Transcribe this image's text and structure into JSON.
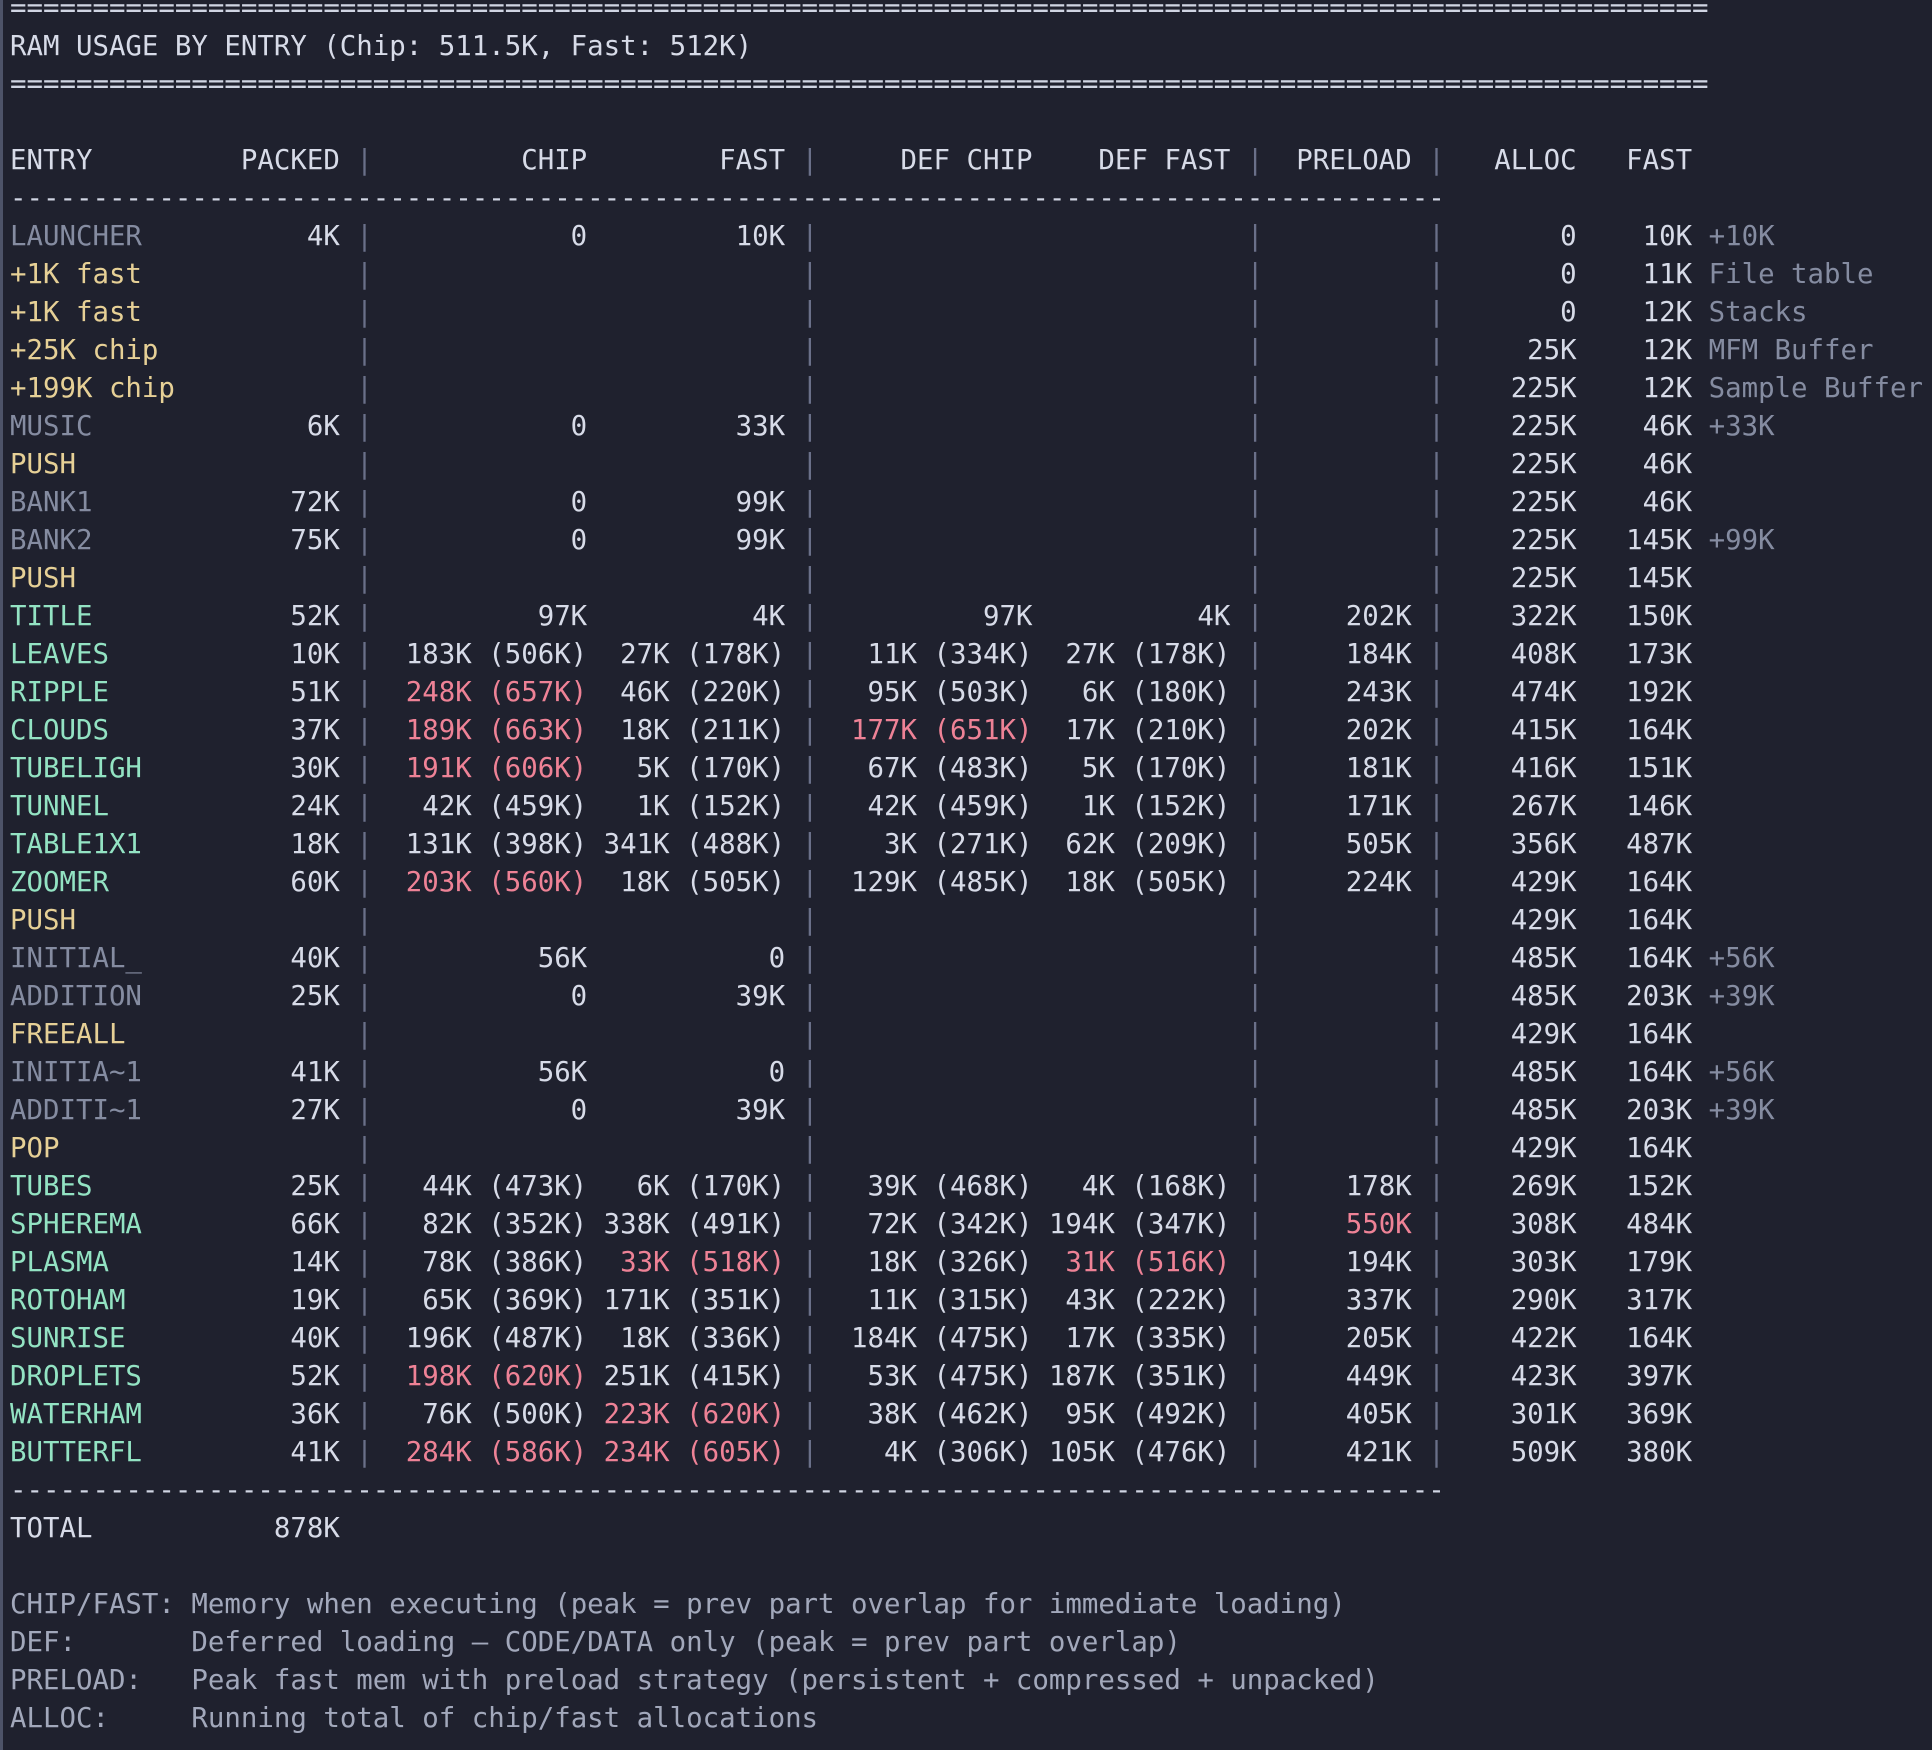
{
  "colors": {
    "background": "#1f212e",
    "border_left": "#4d5368",
    "text_bright": "#d7dbe8",
    "text_dim": "#858ca1",
    "marker_yellow": "#e6d096",
    "part_teal": "#93e3c3",
    "alert_pink": "#ee8296",
    "pipe": "#6a7089",
    "legend": "#a2a8bb",
    "separator": "#d0d5e3"
  },
  "terminal": {
    "title": "RAM USAGE BY ENTRY (Chip: 511.5K, Fast: 512K)",
    "header": {
      "entry": "ENTRY",
      "packed": "PACKED",
      "chip": "CHIP",
      "fast": "FAST",
      "def_chip": "DEF CHIP",
      "def_fast": "DEF FAST",
      "preload": "PRELOAD",
      "alloc": "ALLOC",
      "fast2": "FAST"
    },
    "rows": [
      {
        "entry": "LAUNCHER",
        "style": "dim",
        "packed": "4K",
        "chip": "0",
        "fast": "10K",
        "def_chip": "",
        "def_fast": "",
        "preload": "",
        "alloc": "0",
        "fast2": "10K",
        "note": "+10K",
        "hl": []
      },
      {
        "entry": "+1K fast",
        "style": "marker",
        "packed": "",
        "chip": "",
        "fast": "",
        "def_chip": "",
        "def_fast": "",
        "preload": "",
        "alloc": "0",
        "fast2": "11K",
        "note": "File table",
        "hl": []
      },
      {
        "entry": "+1K fast",
        "style": "marker",
        "packed": "",
        "chip": "",
        "fast": "",
        "def_chip": "",
        "def_fast": "",
        "preload": "",
        "alloc": "0",
        "fast2": "12K",
        "note": "Stacks",
        "hl": []
      },
      {
        "entry": "+25K chip",
        "style": "marker",
        "packed": "",
        "chip": "",
        "fast": "",
        "def_chip": "",
        "def_fast": "",
        "preload": "",
        "alloc": "25K",
        "fast2": "12K",
        "note": "MFM Buffer",
        "hl": []
      },
      {
        "entry": "+199K chip",
        "style": "marker",
        "packed": "",
        "chip": "",
        "fast": "",
        "def_chip": "",
        "def_fast": "",
        "preload": "",
        "alloc": "225K",
        "fast2": "12K",
        "note": "Sample Buffer",
        "hl": []
      },
      {
        "entry": "MUSIC",
        "style": "dim",
        "packed": "6K",
        "chip": "0",
        "fast": "33K",
        "def_chip": "",
        "def_fast": "",
        "preload": "",
        "alloc": "225K",
        "fast2": "46K",
        "note": "+33K",
        "hl": []
      },
      {
        "entry": "PUSH",
        "style": "marker",
        "packed": "",
        "chip": "",
        "fast": "",
        "def_chip": "",
        "def_fast": "",
        "preload": "",
        "alloc": "225K",
        "fast2": "46K",
        "note": "",
        "hl": []
      },
      {
        "entry": "BANK1",
        "style": "dim",
        "packed": "72K",
        "chip": "0",
        "fast": "99K",
        "def_chip": "",
        "def_fast": "",
        "preload": "",
        "alloc": "225K",
        "fast2": "46K",
        "note": "",
        "hl": []
      },
      {
        "entry": "BANK2",
        "style": "dim",
        "packed": "75K",
        "chip": "0",
        "fast": "99K",
        "def_chip": "",
        "def_fast": "",
        "preload": "",
        "alloc": "225K",
        "fast2": "145K",
        "note": "+99K",
        "hl": []
      },
      {
        "entry": "PUSH",
        "style": "marker",
        "packed": "",
        "chip": "",
        "fast": "",
        "def_chip": "",
        "def_fast": "",
        "preload": "",
        "alloc": "225K",
        "fast2": "145K",
        "note": "",
        "hl": []
      },
      {
        "entry": "TITLE",
        "style": "part",
        "packed": "52K",
        "chip": "97K",
        "fast": "4K",
        "def_chip": "97K",
        "def_fast": "4K",
        "preload": "202K",
        "alloc": "322K",
        "fast2": "150K",
        "note": "",
        "hl": []
      },
      {
        "entry": "LEAVES",
        "style": "part",
        "packed": "10K",
        "chip": "183K (506K)",
        "fast": "27K (178K)",
        "def_chip": "11K (334K)",
        "def_fast": "27K (178K)",
        "preload": "184K",
        "alloc": "408K",
        "fast2": "173K",
        "note": "",
        "hl": []
      },
      {
        "entry": "RIPPLE",
        "style": "part",
        "packed": "51K",
        "chip": "248K (657K)",
        "fast": "46K (220K)",
        "def_chip": "95K (503K)",
        "def_fast": "6K (180K)",
        "preload": "243K",
        "alloc": "474K",
        "fast2": "192K",
        "note": "",
        "hl": [
          "chip"
        ]
      },
      {
        "entry": "CLOUDS",
        "style": "part",
        "packed": "37K",
        "chip": "189K (663K)",
        "fast": "18K (211K)",
        "def_chip": "177K (651K)",
        "def_fast": "17K (210K)",
        "preload": "202K",
        "alloc": "415K",
        "fast2": "164K",
        "note": "",
        "hl": [
          "chip",
          "def_chip"
        ]
      },
      {
        "entry": "TUBELIGH",
        "style": "part",
        "packed": "30K",
        "chip": "191K (606K)",
        "fast": "5K (170K)",
        "def_chip": "67K (483K)",
        "def_fast": "5K (170K)",
        "preload": "181K",
        "alloc": "416K",
        "fast2": "151K",
        "note": "",
        "hl": [
          "chip"
        ]
      },
      {
        "entry": "TUNNEL",
        "style": "part",
        "packed": "24K",
        "chip": "42K (459K)",
        "fast": "1K (152K)",
        "def_chip": "42K (459K)",
        "def_fast": "1K (152K)",
        "preload": "171K",
        "alloc": "267K",
        "fast2": "146K",
        "note": "",
        "hl": []
      },
      {
        "entry": "TABLE1X1",
        "style": "part",
        "packed": "18K",
        "chip": "131K (398K)",
        "fast": "341K (488K)",
        "def_chip": "3K (271K)",
        "def_fast": "62K (209K)",
        "preload": "505K",
        "alloc": "356K",
        "fast2": "487K",
        "note": "",
        "hl": []
      },
      {
        "entry": "ZOOMER",
        "style": "part",
        "packed": "60K",
        "chip": "203K (560K)",
        "fast": "18K (505K)",
        "def_chip": "129K (485K)",
        "def_fast": "18K (505K)",
        "preload": "224K",
        "alloc": "429K",
        "fast2": "164K",
        "note": "",
        "hl": [
          "chip"
        ]
      },
      {
        "entry": "PUSH",
        "style": "marker",
        "packed": "",
        "chip": "",
        "fast": "",
        "def_chip": "",
        "def_fast": "",
        "preload": "",
        "alloc": "429K",
        "fast2": "164K",
        "note": "",
        "hl": []
      },
      {
        "entry": "INITIAL_",
        "style": "dim",
        "packed": "40K",
        "chip": "56K",
        "fast": "0",
        "def_chip": "",
        "def_fast": "",
        "preload": "",
        "alloc": "485K",
        "fast2": "164K",
        "note": "+56K",
        "hl": []
      },
      {
        "entry": "ADDITION",
        "style": "dim",
        "packed": "25K",
        "chip": "0",
        "fast": "39K",
        "def_chip": "",
        "def_fast": "",
        "preload": "",
        "alloc": "485K",
        "fast2": "203K",
        "note": "+39K",
        "hl": []
      },
      {
        "entry": "FREEALL",
        "style": "marker",
        "packed": "",
        "chip": "",
        "fast": "",
        "def_chip": "",
        "def_fast": "",
        "preload": "",
        "alloc": "429K",
        "fast2": "164K",
        "note": "",
        "hl": []
      },
      {
        "entry": "INITIA~1",
        "style": "dim",
        "packed": "41K",
        "chip": "56K",
        "fast": "0",
        "def_chip": "",
        "def_fast": "",
        "preload": "",
        "alloc": "485K",
        "fast2": "164K",
        "note": "+56K",
        "hl": []
      },
      {
        "entry": "ADDITI~1",
        "style": "dim",
        "packed": "27K",
        "chip": "0",
        "fast": "39K",
        "def_chip": "",
        "def_fast": "",
        "preload": "",
        "alloc": "485K",
        "fast2": "203K",
        "note": "+39K",
        "hl": []
      },
      {
        "entry": "POP",
        "style": "marker",
        "packed": "",
        "chip": "",
        "fast": "",
        "def_chip": "",
        "def_fast": "",
        "preload": "",
        "alloc": "429K",
        "fast2": "164K",
        "note": "",
        "hl": []
      },
      {
        "entry": "TUBES",
        "style": "part",
        "packed": "25K",
        "chip": "44K (473K)",
        "fast": "6K (170K)",
        "def_chip": "39K (468K)",
        "def_fast": "4K (168K)",
        "preload": "178K",
        "alloc": "269K",
        "fast2": "152K",
        "note": "",
        "hl": []
      },
      {
        "entry": "SPHEREMA",
        "style": "part",
        "packed": "66K",
        "chip": "82K (352K)",
        "fast": "338K (491K)",
        "def_chip": "72K (342K)",
        "def_fast": "194K (347K)",
        "preload": "550K",
        "alloc": "308K",
        "fast2": "484K",
        "note": "",
        "hl": [
          "preload"
        ]
      },
      {
        "entry": "PLASMA",
        "style": "part",
        "packed": "14K",
        "chip": "78K (386K)",
        "fast": "33K (518K)",
        "def_chip": "18K (326K)",
        "def_fast": "31K (516K)",
        "preload": "194K",
        "alloc": "303K",
        "fast2": "179K",
        "note": "",
        "hl": [
          "fast",
          "def_fast"
        ]
      },
      {
        "entry": "ROTOHAM",
        "style": "part",
        "packed": "19K",
        "chip": "65K (369K)",
        "fast": "171K (351K)",
        "def_chip": "11K (315K)",
        "def_fast": "43K (222K)",
        "preload": "337K",
        "alloc": "290K",
        "fast2": "317K",
        "note": "",
        "hl": []
      },
      {
        "entry": "SUNRISE",
        "style": "part",
        "packed": "40K",
        "chip": "196K (487K)",
        "fast": "18K (336K)",
        "def_chip": "184K (475K)",
        "def_fast": "17K (335K)",
        "preload": "205K",
        "alloc": "422K",
        "fast2": "164K",
        "note": "",
        "hl": []
      },
      {
        "entry": "DROPLETS",
        "style": "part",
        "packed": "52K",
        "chip": "198K (620K)",
        "fast": "251K (415K)",
        "def_chip": "53K (475K)",
        "def_fast": "187K (351K)",
        "preload": "449K",
        "alloc": "423K",
        "fast2": "397K",
        "note": "",
        "hl": [
          "chip"
        ]
      },
      {
        "entry": "WATERHAM",
        "style": "part",
        "packed": "36K",
        "chip": "76K (500K)",
        "fast": "223K (620K)",
        "def_chip": "38K (462K)",
        "def_fast": "95K (492K)",
        "preload": "405K",
        "alloc": "301K",
        "fast2": "369K",
        "note": "",
        "hl": [
          "fast"
        ]
      },
      {
        "entry": "BUTTERFL",
        "style": "part",
        "packed": "41K",
        "chip": "284K (586K)",
        "fast": "234K (605K)",
        "def_chip": "4K (306K)",
        "def_fast": "105K (476K)",
        "preload": "421K",
        "alloc": "509K",
        "fast2": "380K",
        "note": "",
        "hl": [
          "chip",
          "fast"
        ]
      }
    ],
    "total": {
      "label": "TOTAL",
      "value": "878K"
    },
    "legend": [
      {
        "label": "CHIP/FAST:",
        "text": "Memory when executing (peak = prev part overlap for immediate loading)"
      },
      {
        "label": "DEF:",
        "text": "Deferred loading – CODE/DATA only (peak = prev part overlap)"
      },
      {
        "label": "PRELOAD:",
        "text": "Peak fast mem with preload strategy (persistent + compressed + unpacked)"
      },
      {
        "label": "ALLOC:",
        "text": "Running total of chip/fast allocations"
      }
    ]
  }
}
